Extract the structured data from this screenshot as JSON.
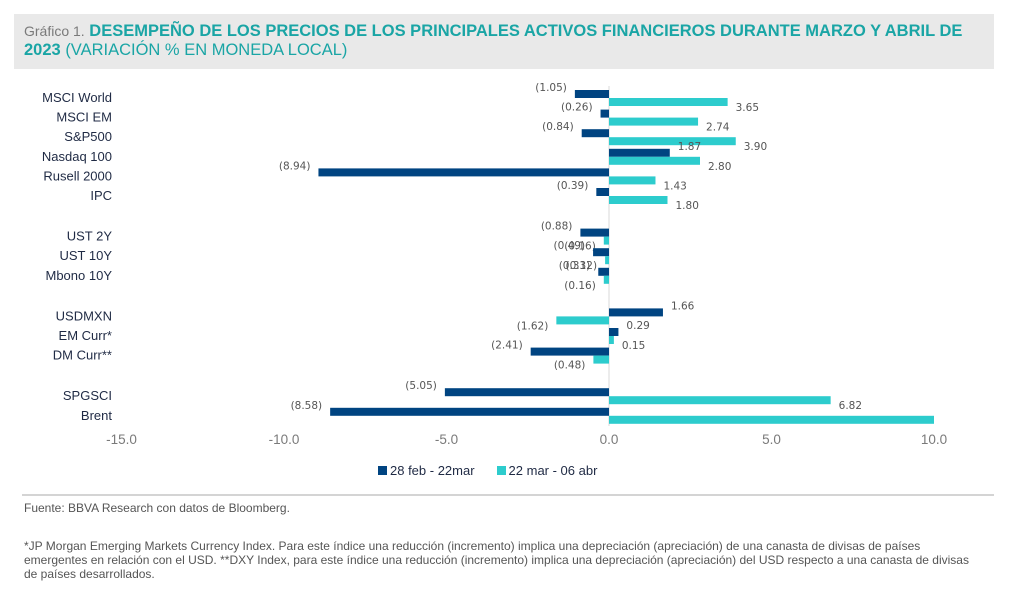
{
  "header": {
    "prefix": "Gráfico 1.",
    "title_bold": "DESEMPEÑO DE LOS PRECIOS DE LOS PRINCIPALES ACTIVOS FINANCIEROS DURANTE MARZO Y ABRIL DE 2023",
    "title_sub": "(VARIACIÓN % EN MONEDA LOCAL)"
  },
  "colors": {
    "series1": "#004481",
    "series2": "#2dcccd",
    "title": "#1aa5a5"
  },
  "chart_data": {
    "type": "bar",
    "orientation": "horizontal",
    "title": "DESEMPEÑO DE LOS PRECIOS DE LOS PRINCIPALES ACTIVOS FINANCIEROS DURANTE MARZO Y ABRIL DE 2023 (VARIACIÓN % EN MONEDA LOCAL)",
    "xlabel": "",
    "ylabel": "",
    "xlim": [
      -15,
      10
    ],
    "xticks": [
      -15,
      -10,
      -5,
      0,
      5,
      10
    ],
    "xtick_labels": [
      "-15.0",
      "-10.0",
      "-5.0",
      "0.0",
      "5.0",
      "10.0"
    ],
    "grid": false,
    "legend_position": "bottom",
    "groups": [
      [
        "MSCI World",
        "MSCI EM",
        "S&P500",
        "Nasdaq 100",
        "Rusell 2000",
        "IPC"
      ],
      [
        "UST 2Y",
        "UST 10Y",
        "Mbono 10Y"
      ],
      [
        "USDMXN",
        "EM Curr*",
        "DM Curr**"
      ],
      [
        "SPGSCI",
        "Brent"
      ]
    ],
    "categories": [
      "MSCI World",
      "MSCI EM",
      "S&P500",
      "Nasdaq 100",
      "Rusell 2000",
      "IPC",
      "UST 2Y",
      "UST 10Y",
      "Mbono 10Y",
      "USDMXN",
      "EM Curr*",
      "DM Curr**",
      "SPGSCI",
      "Brent"
    ],
    "series": [
      {
        "name": "28 feb - 22mar",
        "values": [
          -1.05,
          -0.26,
          -0.84,
          1.87,
          -8.94,
          -0.39,
          -0.88,
          -0.49,
          -0.33,
          1.66,
          0.29,
          -2.41,
          -5.05,
          -8.58
        ],
        "labels": [
          "(1.05)",
          "(0.26)",
          "(0.84)",
          "1.87",
          "(8.94)",
          "(0.39)",
          "(0.88)",
          "(0.49)",
          "(0.33)",
          "1.66",
          "0.29",
          "(2.41)",
          "(5.05)",
          "(8.58)"
        ]
      },
      {
        "name": "22 mar - 06 abr",
        "values": [
          3.65,
          2.74,
          3.9,
          2.8,
          1.43,
          1.8,
          -0.16,
          -0.12,
          -0.16,
          -1.62,
          0.15,
          -0.48,
          6.82,
          10.0
        ],
        "labels": [
          "3.65",
          "2.74",
          "3.90",
          "2.80",
          "1.43",
          "1.80",
          "(0.16)",
          "(0.12)",
          "(0.16)",
          "(1.62)",
          "0.15",
          "(0.48)",
          "6.82",
          ""
        ]
      }
    ]
  },
  "legend": [
    {
      "label": "28 feb - 22mar"
    },
    {
      "label": "22 mar - 06 abr"
    }
  ],
  "footer": {
    "source": "Fuente: BBVA Research con datos de Bloomberg.",
    "notes": "*JP Morgan Emerging Markets Currency Index. Para este índice una reducción (incremento) implica una depreciación (apreciación) de una canasta de divisas de países emergentes en relación con el USD. **DXY Index, para este índice una reducción (incremento) implica una depreciación (apreciación) del USD respecto a una canasta de divisas de países desarrollados."
  }
}
